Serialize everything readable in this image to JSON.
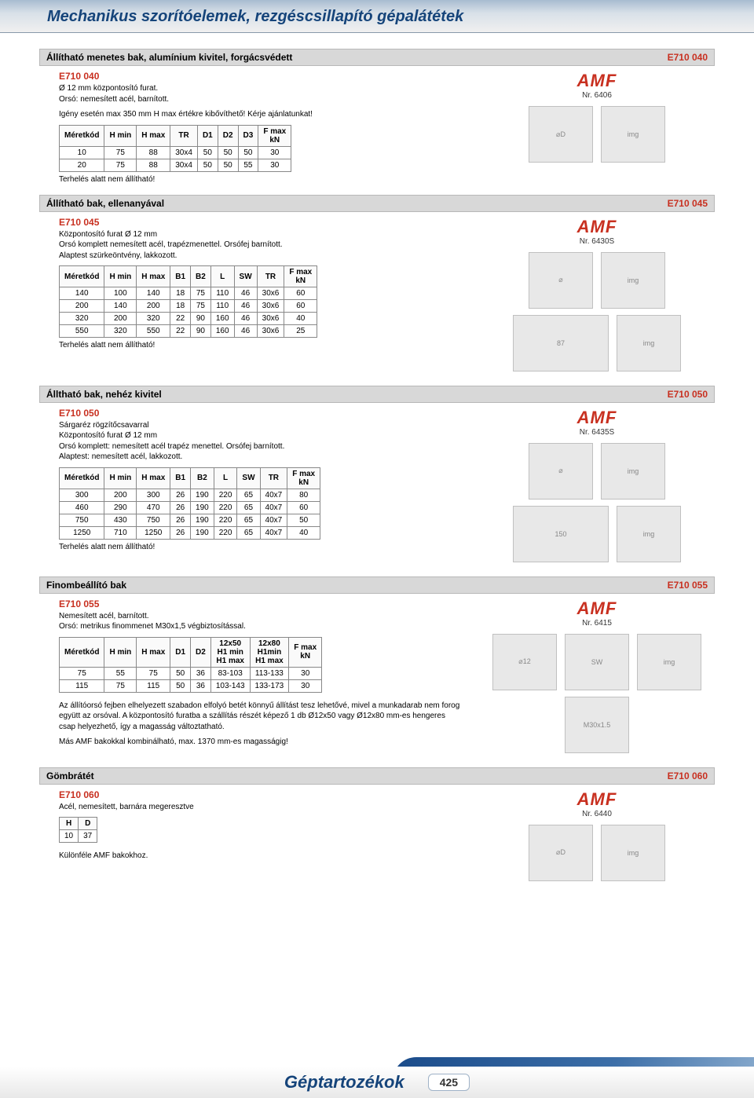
{
  "page": {
    "header_title": "Mechanikus szorítóelemek, rezgéscsillapító gépalátétek",
    "footer_title": "Géptartozékok",
    "page_number": "425"
  },
  "brand": {
    "name": "AMF"
  },
  "s1": {
    "title": "Állítható menetes bak, alumínium kivitel, forgácsvédett",
    "code": "E710 040",
    "prod_code": "E710 040",
    "desc1": "Ø 12 mm központosító furat.",
    "desc2": "Orsó: nemesített acél, barnított.",
    "desc3": "Igény esetén max 350 mm H max értékre kibővíthető! Kérje ajánlatunkat!",
    "brand_no": "Nr. 6406",
    "tbl": {
      "headers": [
        "Méretkód",
        "H min",
        "H max",
        "TR",
        "D1",
        "D2",
        "D3",
        "F max\nkN"
      ],
      "rows": [
        [
          "10",
          "75",
          "88",
          "30x4",
          "50",
          "50",
          "50",
          "30"
        ],
        [
          "20",
          "75",
          "88",
          "30x4",
          "50",
          "50",
          "55",
          "30"
        ]
      ]
    },
    "note": "Terhelés alatt nem állítható!"
  },
  "s2": {
    "title": "Állítható bak, ellenanyával",
    "code": "E710 045",
    "prod_code": "E710 045",
    "desc1": "Központosító furat Ø 12 mm",
    "desc2": "Orsó komplett nemesített acél, trapézmenettel. Orsófej barnított.",
    "desc3": "Alaptest szürkeöntvény, lakkozott.",
    "brand_no": "Nr. 6430S",
    "tbl": {
      "headers": [
        "Méretkód",
        "H min",
        "H max",
        "B1",
        "B2",
        "L",
        "SW",
        "TR",
        "F max\nkN"
      ],
      "rows": [
        [
          "140",
          "100",
          "140",
          "18",
          "75",
          "110",
          "46",
          "30x6",
          "60"
        ],
        [
          "200",
          "140",
          "200",
          "18",
          "75",
          "110",
          "46",
          "30x6",
          "60"
        ],
        [
          "320",
          "200",
          "320",
          "22",
          "90",
          "160",
          "46",
          "30x6",
          "40"
        ],
        [
          "550",
          "320",
          "550",
          "22",
          "90",
          "160",
          "46",
          "30x6",
          "25"
        ]
      ]
    },
    "note": "Terhelés alatt nem állítható!"
  },
  "s3": {
    "title": "Álltható bak, nehéz kivitel",
    "code": "E710 050",
    "prod_code": "E710 050",
    "desc1": "Sárgaréz rögzítőcsavarral",
    "desc2": "Központosító furat Ø 12 mm",
    "desc3": "Orsó komplett: nemesített acél trapéz menettel. Orsófej barnított.",
    "desc4": "Alaptest: nemesített acél, lakkozott.",
    "brand_no": "Nr. 6435S",
    "tbl": {
      "headers": [
        "Méretkód",
        "H min",
        "H max",
        "B1",
        "B2",
        "L",
        "SW",
        "TR",
        "F max\nkN"
      ],
      "rows": [
        [
          "300",
          "200",
          "300",
          "26",
          "190",
          "220",
          "65",
          "40x7",
          "80"
        ],
        [
          "460",
          "290",
          "470",
          "26",
          "190",
          "220",
          "65",
          "40x7",
          "60"
        ],
        [
          "750",
          "430",
          "750",
          "26",
          "190",
          "220",
          "65",
          "40x7",
          "50"
        ],
        [
          "1250",
          "710",
          "1250",
          "26",
          "190",
          "220",
          "65",
          "40x7",
          "40"
        ]
      ]
    },
    "note": "Terhelés alatt nem állítható!"
  },
  "s4": {
    "title": "Finombeállító bak",
    "code": "E710 055",
    "prod_code": "E710 055",
    "desc1": "Nemesített acél, barnított.",
    "desc2": "Orsó: metrikus finommenet M30x1,5 végbiztosítással.",
    "brand_no": "Nr. 6415",
    "tbl": {
      "headers": [
        "Méretkód",
        "H min",
        "H max",
        "D1",
        "D2",
        "12x50\nH1 min\nH1 max",
        "12x80\nH1min\nH1 max",
        "F max\nkN"
      ],
      "rows": [
        [
          "75",
          "55",
          "75",
          "50",
          "36",
          "83-103",
          "113-133",
          "30"
        ],
        [
          "115",
          "75",
          "115",
          "50",
          "36",
          "103-143",
          "133-173",
          "30"
        ]
      ]
    },
    "note1": "Az állítóorsó fejben elhelyezett szabadon elfolyó betét könnyű állítást tesz lehetővé, mivel a munkadarab nem forog együtt az orsóval. A központosító furatba a szállítás részét képező 1 db Ø12x50 vagy Ø12x80 mm-es hengeres csap helyezhető, így a magasság változtatható.",
    "note2": "Más AMF bakokkal kombinálható, max. 1370 mm-es magasságig!"
  },
  "s5": {
    "title": "Gömbrátét",
    "code": "E710 060",
    "prod_code": "E710 060",
    "desc1": "Acél, nemesített, barnára megeresztve",
    "brand_no": "Nr. 6440",
    "tbl": {
      "headers": [
        "H",
        "D"
      ],
      "rows": [
        [
          "10",
          "37"
        ]
      ]
    },
    "note": "Különféle AMF bakokhoz."
  }
}
